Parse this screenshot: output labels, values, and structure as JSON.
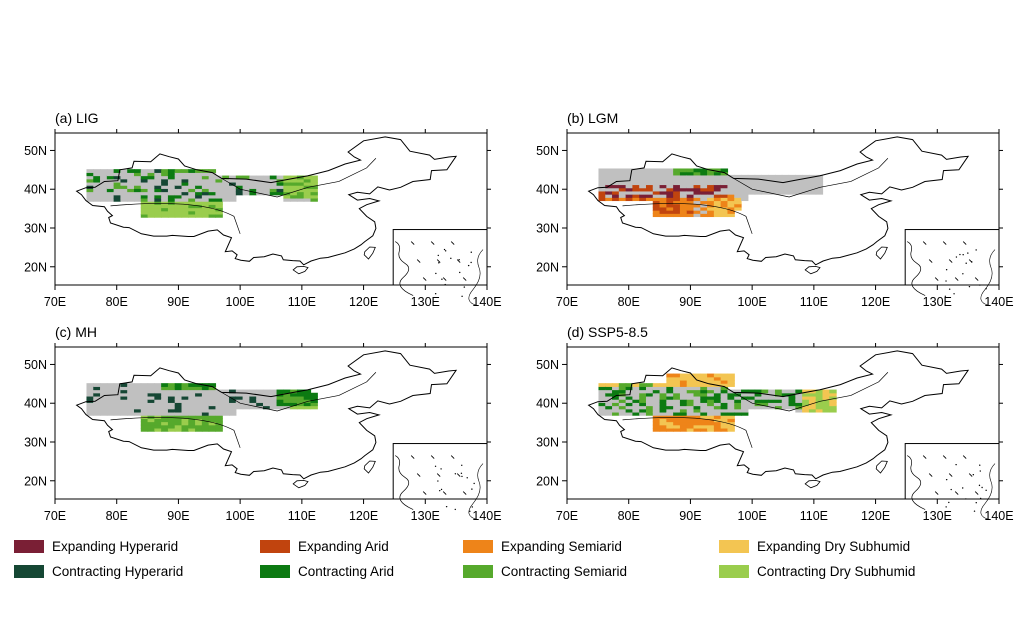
{
  "panels": [
    {
      "id": "lig",
      "title": "(a) LIG"
    },
    {
      "id": "lgm",
      "title": "(b) LGM"
    },
    {
      "id": "mh",
      "title": "(c) MH"
    },
    {
      "id": "ssp",
      "title": "(d) SSP5-8.5"
    }
  ],
  "axes": {
    "lon_ticks": [
      "70E",
      "80E",
      "90E",
      "100E",
      "110E",
      "120E",
      "130E",
      "140E"
    ],
    "lat_ticks": [
      "20N",
      "30N",
      "40N",
      "50N"
    ],
    "lon_range": [
      70,
      140
    ],
    "lat_range": [
      15,
      55
    ]
  },
  "legend": [
    {
      "label": "Expanding Hyperarid",
      "color": "#7a1f35"
    },
    {
      "label": "Expanding Arid",
      "color": "#c1440e"
    },
    {
      "label": "Expanding Semiarid",
      "color": "#ee8419"
    },
    {
      "label": "Expanding Dry Subhumid",
      "color": "#f3c552"
    },
    {
      "label": "Contracting Hyperarid",
      "color": "#154734"
    },
    {
      "label": "Contracting Arid",
      "color": "#0c7a12"
    },
    {
      "label": "Contracting Semiarid",
      "color": "#56a92c"
    },
    {
      "label": "Contracting Dry Subhumid",
      "color": "#9acd4d"
    }
  ],
  "colors": {
    "drylands": "#c0c0c0",
    "coast": "#000000"
  }
}
